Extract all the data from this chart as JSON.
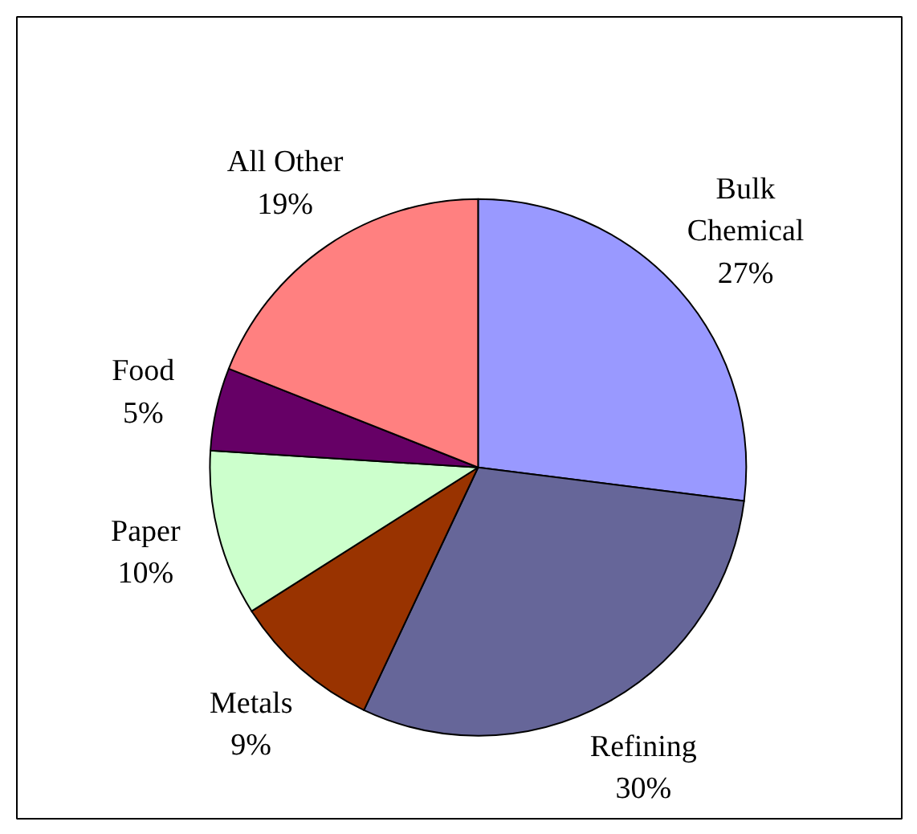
{
  "chart_data": {
    "type": "pie",
    "categories": [
      "Bulk Chemical",
      "Refining",
      "Metals",
      "Paper",
      "Food",
      "All Other"
    ],
    "values": [
      27,
      30,
      9,
      10,
      5,
      19
    ],
    "value_labels": [
      "27%",
      "30%",
      "9%",
      "10%",
      "5%",
      "19%"
    ],
    "colors": [
      "#9999ff",
      "#666699",
      "#993300",
      "#ccffcc",
      "#660066",
      "#ff8080"
    ]
  }
}
